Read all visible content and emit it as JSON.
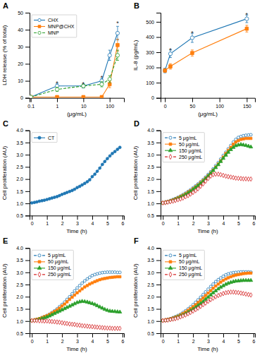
{
  "chart_data": [
    {
      "type": "line",
      "title": "A",
      "xlabel": "(μg/mL)",
      "ylabel": "LDH release (% of total)",
      "log": "x",
      "xlim": [
        0.09,
        350
      ],
      "ylim": [
        0,
        50
      ],
      "xticks": [
        0.1,
        1,
        10,
        100
      ],
      "yticks": [
        0,
        10,
        20,
        30,
        40,
        50
      ],
      "grid": false,
      "legend": "upper left",
      "x": [
        0.1,
        1,
        10,
        50,
        100,
        200
      ],
      "series": [
        {
          "name": "CHX",
          "marker": "circle-open",
          "line_style": "solid",
          "values": [
            0.5,
            7.0,
            7.0,
            10.0,
            25.0,
            38.0
          ],
          "errors": [
            0.3,
            1.5,
            1.2,
            1.5,
            3.0,
            4.0
          ]
        },
        {
          "name": "MNP@CHX",
          "marker": "square",
          "line_style": "solid",
          "values": [
            0.5,
            0.5,
            0.5,
            0.5,
            8.0,
            31.0
          ],
          "errors": [
            0.2,
            0.3,
            0.3,
            0.3,
            2.0,
            3.5
          ]
        },
        {
          "name": "MNP",
          "marker": "circle-open",
          "line_style": "dashed",
          "values": [
            0.5,
            5.0,
            7.0,
            8.0,
            11.0,
            25.0
          ],
          "errors": [
            0.3,
            1.2,
            1.0,
            1.5,
            2.0,
            3.0
          ]
        }
      ],
      "annotations": [
        {
          "text": "*",
          "x": 1,
          "y": 9.0
        },
        {
          "text": "*",
          "x": 10,
          "y": 8.5
        },
        {
          "text": "*",
          "x": 50,
          "y": 12.5
        },
        {
          "text": "*",
          "x": 200,
          "y": 44.0
        }
      ]
    },
    {
      "type": "line",
      "title": "B",
      "xlabel": "(μg/mL)",
      "ylabel": "IL-8 (pg/mL)",
      "xlim": [
        -8,
        165
      ],
      "ylim": [
        0,
        560
      ],
      "xticks": [
        0,
        50,
        100,
        150
      ],
      "yticks": [
        0,
        100,
        200,
        300,
        400,
        500
      ],
      "grid": false,
      "x": [
        0,
        10,
        50,
        150
      ],
      "series": [
        {
          "marker": "circle-open",
          "line_style": "solid",
          "values": [
            180,
            290,
            395,
            520
          ],
          "errors": [
            15,
            25,
            30,
            25
          ]
        },
        {
          "marker": "square",
          "line_style": "solid",
          "values": [
            180,
            207,
            295,
            455
          ],
          "errors": [
            12,
            18,
            20,
            22
          ]
        }
      ],
      "annotations": [
        {
          "text": "*",
          "x": 10,
          "y": 320
        },
        {
          "text": "*",
          "x": 50,
          "y": 430
        },
        {
          "text": "*",
          "x": 150,
          "y": 550
        }
      ]
    },
    {
      "type": "line",
      "title": "C",
      "xlabel": "Time (h)",
      "ylabel": "Cell proliferation (AU)",
      "xlim": [
        -0.15,
        6.1
      ],
      "ylim": [
        0.5,
        4.0
      ],
      "xticks": [
        0,
        1,
        2,
        3,
        4,
        5,
        6
      ],
      "yticks": [
        0.5,
        {
          "value": 1.0,
          "label": "1.0"
        },
        1.5,
        {
          "value": 2.0,
          "label": "2.0"
        },
        2.5,
        {
          "value": 3.0,
          "label": "3.0"
        },
        3.5,
        {
          "value": 4.0,
          "label": "4.0"
        }
      ],
      "grid": false,
      "legend": "upper left",
      "x": [
        0,
        0.17,
        0.33,
        0.5,
        0.67,
        0.83,
        1.0,
        1.17,
        1.33,
        1.5,
        1.67,
        1.83,
        2.0,
        2.17,
        2.33,
        2.5,
        2.67,
        2.83,
        3.0,
        3.17,
        3.33,
        3.5,
        3.67,
        3.83,
        4.0,
        4.17,
        4.33,
        4.5,
        4.67,
        4.83,
        5.0,
        5.17,
        5.33,
        5.5,
        5.67,
        5.83
      ],
      "series": [
        {
          "name": "CT",
          "marker": "circle",
          "line_style": "solid",
          "values": [
            1.02,
            1.04,
            1.06,
            1.09,
            1.11,
            1.13,
            1.16,
            1.19,
            1.22,
            1.25,
            1.28,
            1.32,
            1.37,
            1.41,
            1.45,
            1.49,
            1.53,
            1.58,
            1.65,
            1.7,
            1.76,
            1.82,
            1.89,
            1.97,
            2.1,
            2.2,
            2.32,
            2.45,
            2.6,
            2.72,
            2.84,
            2.95,
            3.05,
            3.13,
            3.22,
            3.3
          ]
        }
      ]
    },
    {
      "type": "line",
      "title": "D",
      "xlabel": "Time (h)",
      "ylabel": "Cell proliferation (AU)",
      "xlim": [
        -0.15,
        6.1
      ],
      "ylim": [
        0.5,
        4.0
      ],
      "xticks": [
        0,
        1,
        2,
        3,
        4,
        5,
        6
      ],
      "yticks": [
        0.5,
        {
          "value": 1.0,
          "label": "1.0"
        },
        1.5,
        {
          "value": 2.0,
          "label": "2.0"
        },
        2.5,
        {
          "value": 3.0,
          "label": "3.0"
        },
        3.5,
        {
          "value": 4.0,
          "label": "4.0"
        }
      ],
      "grid": false,
      "legend": "upper left",
      "x": [
        0,
        0.17,
        0.33,
        0.5,
        0.67,
        0.83,
        1.0,
        1.17,
        1.33,
        1.5,
        1.67,
        1.83,
        2.0,
        2.17,
        2.33,
        2.5,
        2.67,
        2.83,
        3.0,
        3.17,
        3.33,
        3.5,
        3.67,
        3.83,
        4.0,
        4.17,
        4.33,
        4.5,
        4.67,
        4.83,
        5.0,
        5.17,
        5.33,
        5.5,
        5.67,
        5.83
      ],
      "series": [
        {
          "name": "5 μg/mL",
          "marker": "circle-open",
          "line_style": "dashed",
          "values": [
            1.02,
            1.05,
            1.08,
            1.12,
            1.16,
            1.2,
            1.25,
            1.3,
            1.36,
            1.42,
            1.49,
            1.56,
            1.64,
            1.72,
            1.8,
            1.89,
            1.98,
            2.08,
            2.19,
            2.3,
            2.42,
            2.55,
            2.68,
            2.82,
            2.97,
            3.1,
            3.24,
            3.38,
            3.52,
            3.63,
            3.71,
            3.75,
            3.78,
            3.8,
            3.81,
            3.82
          ]
        },
        {
          "name": "50 μg/mL",
          "marker": "square",
          "line_style": "solid",
          "values": [
            1.02,
            1.04,
            1.07,
            1.1,
            1.14,
            1.18,
            1.23,
            1.28,
            1.33,
            1.39,
            1.46,
            1.52,
            1.6,
            1.68,
            1.76,
            1.85,
            1.94,
            2.04,
            2.14,
            2.25,
            2.36,
            2.49,
            2.62,
            2.75,
            2.9,
            3.05,
            3.18,
            3.3,
            3.43,
            3.52,
            3.58,
            3.63,
            3.65,
            3.67,
            3.67,
            3.67
          ]
        },
        {
          "name": "150 μg/mL",
          "marker": "triangle",
          "line_style": "solid",
          "values": [
            1.02,
            1.04,
            1.06,
            1.09,
            1.12,
            1.16,
            1.2,
            1.25,
            1.3,
            1.36,
            1.42,
            1.49,
            1.57,
            1.65,
            1.73,
            1.82,
            1.91,
            2.01,
            2.12,
            2.23,
            2.35,
            2.47,
            2.59,
            2.72,
            2.85,
            2.98,
            3.1,
            3.21,
            3.3,
            3.37,
            3.4,
            3.42,
            3.4,
            3.38,
            3.35,
            3.32
          ]
        },
        {
          "name": "250 μg/mL",
          "marker": "diamond-open",
          "line_style": "dashed",
          "values": [
            1.02,
            1.03,
            1.05,
            1.07,
            1.09,
            1.12,
            1.15,
            1.18,
            1.22,
            1.27,
            1.32,
            1.38,
            1.45,
            1.52,
            1.6,
            1.7,
            1.8,
            1.91,
            2.02,
            2.12,
            2.18,
            2.2,
            2.2,
            2.18,
            2.15,
            2.12,
            2.1,
            2.08,
            2.06,
            2.04,
            2.03,
            2.02,
            2.01,
            2.01,
            2.0,
            2.0
          ]
        }
      ]
    },
    {
      "type": "line",
      "title": "E",
      "xlabel": "Time (h)",
      "ylabel": "Cell proliferation (AU)",
      "xlim": [
        -0.15,
        6.1
      ],
      "ylim": [
        0.5,
        4.0
      ],
      "xticks": [
        0,
        1,
        2,
        3,
        4,
        5,
        6
      ],
      "yticks": [
        0.5,
        {
          "value": 1.0,
          "label": "1.0"
        },
        1.5,
        {
          "value": 2.0,
          "label": "2.0"
        },
        2.5,
        {
          "value": 3.0,
          "label": "3.0"
        },
        3.5,
        {
          "value": 4.0,
          "label": "4.0"
        }
      ],
      "grid": false,
      "legend": "upper left",
      "x": [
        0,
        0.17,
        0.33,
        0.5,
        0.67,
        0.83,
        1.0,
        1.17,
        1.33,
        1.5,
        1.67,
        1.83,
        2.0,
        2.17,
        2.33,
        2.5,
        2.67,
        2.83,
        3.0,
        3.17,
        3.33,
        3.5,
        3.67,
        3.83,
        4.0,
        4.17,
        4.33,
        4.5,
        4.67,
        4.83,
        5.0,
        5.17,
        5.33,
        5.5,
        5.67,
        5.83
      ],
      "series": [
        {
          "name": "5 μg/mL",
          "marker": "circle-open",
          "line_style": "dashed",
          "values": [
            1.02,
            1.04,
            1.07,
            1.1,
            1.14,
            1.18,
            1.23,
            1.28,
            1.35,
            1.42,
            1.5,
            1.59,
            1.68,
            1.78,
            1.89,
            2.0,
            2.12,
            2.24,
            2.36,
            2.46,
            2.56,
            2.65,
            2.73,
            2.8,
            2.87,
            2.91,
            2.94,
            2.97,
            2.99,
            3.0,
            3.01,
            3.01,
            3.01,
            3.01,
            3.0,
            3.0
          ]
        },
        {
          "name": "50 μg/mL",
          "marker": "square",
          "line_style": "solid",
          "values": [
            1.02,
            1.04,
            1.07,
            1.1,
            1.14,
            1.18,
            1.22,
            1.27,
            1.33,
            1.39,
            1.46,
            1.53,
            1.62,
            1.7,
            1.79,
            1.89,
            1.98,
            2.07,
            2.16,
            2.24,
            2.32,
            2.4,
            2.46,
            2.52,
            2.57,
            2.62,
            2.66,
            2.7,
            2.73,
            2.75,
            2.77,
            2.79,
            2.8,
            2.81,
            2.82,
            2.82
          ]
        },
        {
          "name": "150 μg/mL",
          "marker": "triangle",
          "line_style": "solid",
          "values": [
            1.02,
            1.03,
            1.05,
            1.07,
            1.1,
            1.13,
            1.17,
            1.21,
            1.26,
            1.31,
            1.36,
            1.41,
            1.46,
            1.51,
            1.56,
            1.61,
            1.66,
            1.71,
            1.76,
            1.79,
            1.81,
            1.8,
            1.78,
            1.75,
            1.72,
            1.68,
            1.63,
            1.58,
            1.53,
            1.48,
            1.44,
            1.41,
            1.4,
            1.39,
            1.38,
            1.37
          ]
        },
        {
          "name": "250 μg/mL",
          "marker": "diamond-open",
          "line_style": "dashed",
          "values": [
            1.02,
            1.02,
            1.02,
            1.01,
            1.01,
            1.0,
            1.0,
            0.99,
            0.98,
            0.97,
            0.96,
            0.95,
            0.93,
            0.91,
            0.9,
            0.88,
            0.87,
            0.86,
            0.84,
            0.83,
            0.81,
            0.8,
            0.79,
            0.78,
            0.77,
            0.76,
            0.75,
            0.74,
            0.73,
            0.72,
            0.71,
            0.71,
            0.7,
            0.7,
            0.7,
            0.7
          ]
        }
      ]
    },
    {
      "type": "line",
      "title": "F",
      "xlabel": "Time (h)",
      "ylabel": "Cell proliferation (AU)",
      "xlim": [
        -0.15,
        6.1
      ],
      "ylim": [
        0.5,
        4.0
      ],
      "xticks": [
        0,
        1,
        2,
        3,
        4,
        5,
        6
      ],
      "yticks": [
        0.5,
        {
          "value": 1.0,
          "label": "1.0"
        },
        1.5,
        {
          "value": 2.0,
          "label": "2.0"
        },
        2.5,
        {
          "value": 3.0,
          "label": "3.0"
        },
        3.5,
        {
          "value": 4.0,
          "label": "4.0"
        }
      ],
      "grid": false,
      "legend": "upper left",
      "x": [
        0,
        0.17,
        0.33,
        0.5,
        0.67,
        0.83,
        1.0,
        1.17,
        1.33,
        1.5,
        1.67,
        1.83,
        2.0,
        2.17,
        2.33,
        2.5,
        2.67,
        2.83,
        3.0,
        3.17,
        3.33,
        3.5,
        3.67,
        3.83,
        4.0,
        4.17,
        4.33,
        4.5,
        4.67,
        4.83,
        5.0,
        5.17,
        5.33,
        5.5,
        5.67,
        5.83
      ],
      "series": [
        {
          "name": "5 μg/mL",
          "marker": "circle-open",
          "line_style": "dashed",
          "values": [
            1.02,
            1.04,
            1.07,
            1.1,
            1.14,
            1.18,
            1.23,
            1.28,
            1.35,
            1.42,
            1.5,
            1.58,
            1.67,
            1.77,
            1.87,
            1.98,
            2.09,
            2.2,
            2.31,
            2.42,
            2.52,
            2.62,
            2.7,
            2.77,
            2.84,
            2.9,
            2.94,
            2.97,
            2.99,
            3.0,
            3.01,
            3.02,
            3.02,
            3.02,
            3.02,
            3.01
          ]
        },
        {
          "name": "50 μg/mL",
          "marker": "square",
          "line_style": "solid",
          "values": [
            1.02,
            1.04,
            1.06,
            1.09,
            1.12,
            1.16,
            1.2,
            1.25,
            1.31,
            1.37,
            1.44,
            1.51,
            1.59,
            1.67,
            1.76,
            1.85,
            1.95,
            2.05,
            2.15,
            2.25,
            2.35,
            2.44,
            2.52,
            2.6,
            2.67,
            2.73,
            2.78,
            2.82,
            2.86,
            2.89,
            2.91,
            2.93,
            2.95,
            2.96,
            2.97,
            2.97
          ]
        },
        {
          "name": "150 μg/mL",
          "marker": "triangle",
          "line_style": "solid",
          "values": [
            1.02,
            1.03,
            1.05,
            1.07,
            1.1,
            1.13,
            1.17,
            1.21,
            1.25,
            1.3,
            1.36,
            1.42,
            1.49,
            1.56,
            1.64,
            1.72,
            1.8,
            1.89,
            1.98,
            2.07,
            2.16,
            2.24,
            2.32,
            2.39,
            2.45,
            2.51,
            2.55,
            2.59,
            2.62,
            2.64,
            2.65,
            2.66,
            2.67,
            2.67,
            2.67,
            2.67
          ]
        },
        {
          "name": "250 μg/mL",
          "marker": "diamond-open",
          "line_style": "dashed",
          "values": [
            1.02,
            1.03,
            1.04,
            1.06,
            1.08,
            1.1,
            1.13,
            1.17,
            1.21,
            1.25,
            1.3,
            1.35,
            1.41,
            1.47,
            1.53,
            1.6,
            1.67,
            1.74,
            1.81,
            1.88,
            1.94,
            2.0,
            2.05,
            2.09,
            2.13,
            2.16,
            2.18,
            2.19,
            2.19,
            2.18,
            2.17,
            2.15,
            2.13,
            2.11,
            2.09,
            2.07
          ]
        }
      ]
    }
  ]
}
